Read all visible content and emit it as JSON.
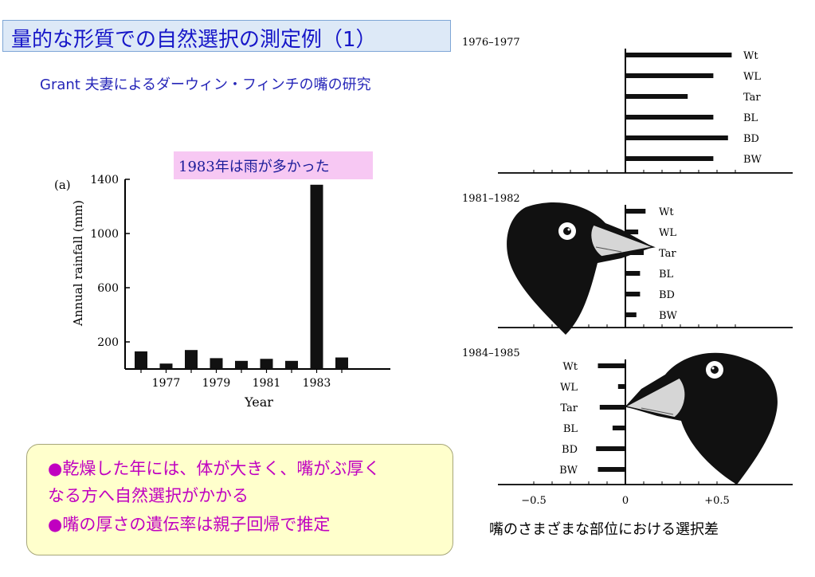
{
  "title": "量的な形質での自然選択の測定例（1）",
  "subtitle": "Grant 夫妻によるダーウィン・フィンチの嘴の研究",
  "callout": "1983年は雨が多かった",
  "note_lines": [
    "●乾燥した年には、体が大きく、嘴がぶ厚く",
    "なる方へ自然選択がかかる",
    "●嘴の厚さの遺伝率は親子回帰で推定"
  ],
  "caption": "嘴のさまざまな部位における選択差",
  "chart_data": [
    {
      "type": "bar",
      "panel_label": "(a)",
      "xlabel": "Year",
      "ylabel": "Annual rainfall (mm)",
      "ylim": [
        0,
        1400
      ],
      "yticks": [
        "200",
        "600",
        "1000",
        "1400"
      ],
      "xtick_labels": [
        "1977",
        "1979",
        "1981",
        "1983"
      ],
      "categories": [
        "1976",
        "1977",
        "1978",
        "1979",
        "1980",
        "1981",
        "1982",
        "1983",
        "1984"
      ],
      "values": [
        130,
        40,
        140,
        80,
        60,
        75,
        60,
        1360,
        85
      ]
    },
    {
      "type": "bar",
      "panels": [
        {
          "period": "1976–1977",
          "traits": [
            "Wt",
            "WL",
            "Tar",
            "BL",
            "BD",
            "BW"
          ],
          "values": [
            0.58,
            0.48,
            0.34,
            0.48,
            0.56,
            0.48
          ]
        },
        {
          "period": "1981–1982",
          "traits": [
            "Wt",
            "WL",
            "Tar",
            "BL",
            "BD",
            "BW"
          ],
          "values": [
            0.11,
            0.07,
            0.1,
            0.08,
            0.08,
            0.06
          ]
        },
        {
          "period": "1984–1985",
          "traits": [
            "Wt",
            "WL",
            "Tar",
            "BL",
            "BD",
            "BW"
          ],
          "values": [
            -0.15,
            -0.04,
            -0.14,
            -0.07,
            -0.16,
            -0.15
          ]
        }
      ],
      "xticks": [
        "−0.5",
        "0",
        "+0.5"
      ],
      "xlim": [
        -0.6,
        0.8
      ]
    }
  ]
}
